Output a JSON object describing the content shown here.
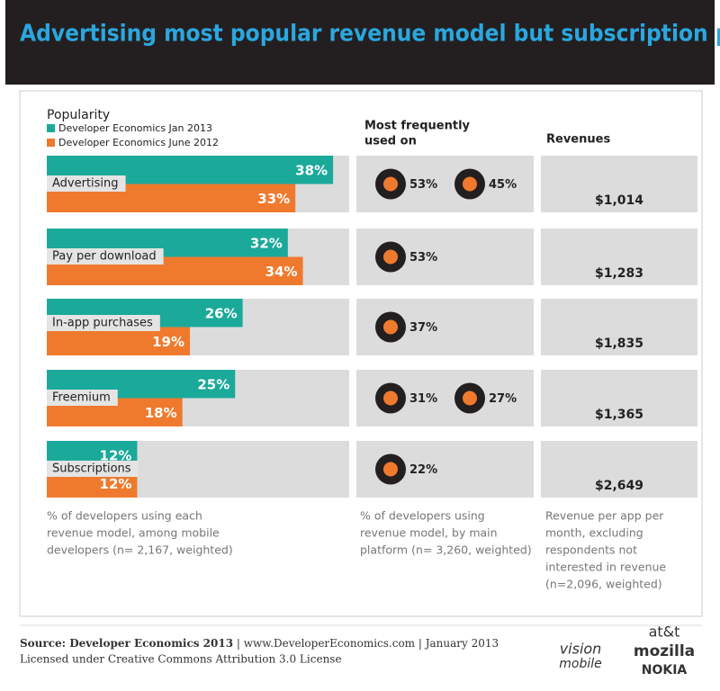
{
  "header": {
    "title": "Advertising most popular revenue model but subscription pays better"
  },
  "chart_data": {
    "type": "bar",
    "orientation": "horizontal",
    "title": "Popularity",
    "categories": [
      "Advertising",
      "Pay per download",
      "In-app purchases",
      "Freemium",
      "Subscriptions"
    ],
    "series": [
      {
        "name": "Developer Economics Jan 2013",
        "color": "#1ba99a",
        "values": [
          38,
          32,
          26,
          25,
          12
        ],
        "value_labels": [
          "38%",
          "32%",
          "26%",
          "25%",
          "12%"
        ]
      },
      {
        "name": "Developer Economics June 2012",
        "color": "#ef7a2e",
        "values": [
          33,
          34,
          19,
          18,
          12
        ],
        "value_labels": [
          "33%",
          "34%",
          "19%",
          "18%",
          "12%"
        ]
      }
    ]
  },
  "platforms": {
    "title": [
      "Most frequently",
      "used on"
    ],
    "rows": [
      [
        "53%",
        "45%"
      ],
      [
        "53%"
      ],
      [
        "37%"
      ],
      [
        "31%",
        "27%"
      ],
      [
        "22%"
      ]
    ]
  },
  "revenues": {
    "title": "Revenues",
    "amounts": [
      "$1,014",
      "$1,283",
      "$1,835",
      "$1,365",
      "$2,649"
    ]
  },
  "notes": {
    "popularity": [
      "% of developers using each",
      "revenue model, among mobile",
      "developers (n= 2,167, weighted)"
    ],
    "platforms": [
      "% of developers using",
      "revenue model, by main",
      "platform (n= 3,260, weighted)"
    ],
    "revenues": [
      "Revenue per app per",
      "month, excluding",
      "respondents not",
      "interested in revenue",
      "(n=2,096, weighted)"
    ]
  },
  "footer": {
    "source": "Source: Developer Economics 2013",
    "rest": " | www.DeveloperEconomics.com | January 2013",
    "license": "Licensed under Creative Commons Attribution 3.0 License",
    "logos": [
      "vision",
      "mobile",
      "at&t",
      "mozilla",
      "NOKIA"
    ]
  }
}
